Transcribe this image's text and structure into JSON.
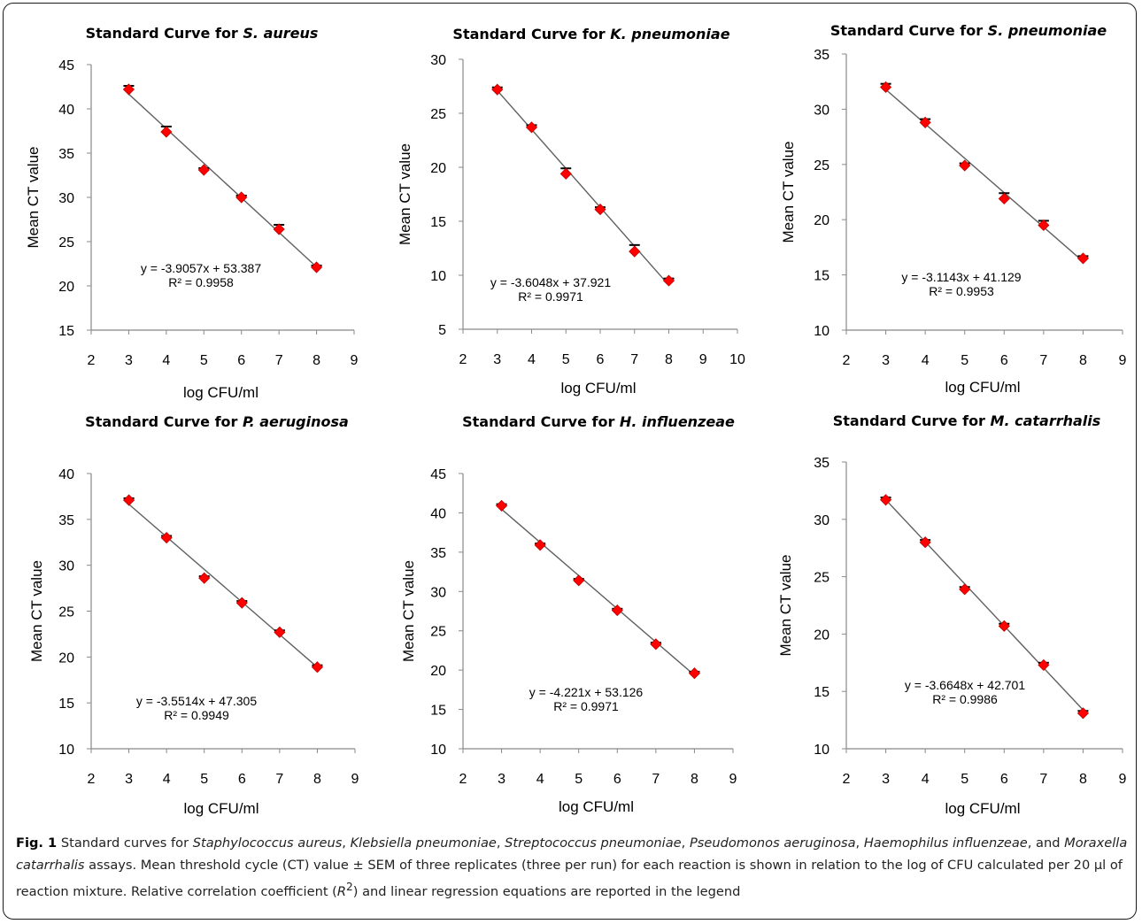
{
  "chart_data": [
    {
      "type": "scatter",
      "title": "Standard Curve for ",
      "title_species": "S. aureus",
      "xlabel": "log CFU/ml",
      "ylabel": "Mean CT value",
      "xlim": [
        2,
        9
      ],
      "ylim": [
        15,
        45
      ],
      "xticks": [
        "2",
        "3",
        "4",
        "5",
        "6",
        "7",
        "8",
        "9"
      ],
      "yticks": [
        "15",
        "20",
        "25",
        "30",
        "35",
        "40",
        "45"
      ],
      "x": [
        3,
        4,
        5,
        6,
        7,
        8
      ],
      "y": [
        42.2,
        37.4,
        33.1,
        30.0,
        26.4,
        22.1
      ],
      "error": [
        0.4,
        0.6,
        0.2,
        0.2,
        0.5,
        0.2
      ],
      "equation": "y = -3.9057x + 53.387",
      "r2": "R² = 0.9958",
      "slope": -3.9057,
      "intercept": 53.387,
      "marker_color": "#ff0000",
      "line_color": "#606060"
    },
    {
      "type": "scatter",
      "title": "Standard Curve for ",
      "title_species": "K. pneumoniae",
      "xlabel": "log CFU/ml",
      "ylabel": "Mean CT value",
      "xlim": [
        2,
        10
      ],
      "ylim": [
        5,
        30
      ],
      "xticks": [
        "2",
        "3",
        "4",
        "5",
        "6",
        "7",
        "8",
        "9",
        "10"
      ],
      "yticks": [
        "5",
        "10",
        "15",
        "20",
        "25",
        "30"
      ],
      "x": [
        3,
        4,
        5,
        6,
        7,
        8
      ],
      "y": [
        27.2,
        23.7,
        19.4,
        16.1,
        12.2,
        9.5
      ],
      "error": [
        0.2,
        0.2,
        0.5,
        0.2,
        0.6,
        0.2
      ],
      "equation": "y = -3.6048x + 37.921",
      "r2": "R² = 0.9971",
      "slope": -3.6048,
      "intercept": 37.921,
      "marker_color": "#ff0000",
      "line_color": "#606060"
    },
    {
      "type": "scatter",
      "title": "Standard Curve for ",
      "title_species": "S. pneumoniae",
      "xlabel": "log CFU/ml",
      "ylabel": "Mean CT value",
      "xlim": [
        2,
        9
      ],
      "ylim": [
        10,
        35
      ],
      "xticks": [
        "2",
        "3",
        "4",
        "5",
        "6",
        "7",
        "8",
        "9"
      ],
      "yticks": [
        "10",
        "15",
        "20",
        "25",
        "30",
        "35"
      ],
      "x": [
        3,
        4,
        5,
        6,
        7,
        8
      ],
      "y": [
        32.0,
        28.8,
        24.9,
        21.9,
        19.5,
        16.5
      ],
      "error": [
        0.3,
        0.3,
        0.2,
        0.5,
        0.4,
        0.2
      ],
      "equation": "y = -3.1143x + 41.129",
      "r2": "R² = 0.9953",
      "slope": -3.1143,
      "intercept": 41.129,
      "marker_color": "#ff0000",
      "line_color": "#606060"
    },
    {
      "type": "scatter",
      "title": "Standard Curve for ",
      "title_species": "P. aeruginosa",
      "xlabel": "log CFU/ml",
      "ylabel": "Mean CT value",
      "xlim": [
        2,
        9
      ],
      "ylim": [
        10,
        40
      ],
      "xticks": [
        "2",
        "3",
        "4",
        "5",
        "6",
        "7",
        "8",
        "9"
      ],
      "yticks": [
        "10",
        "15",
        "20",
        "25",
        "30",
        "35",
        "40"
      ],
      "x": [
        3,
        4,
        5,
        6,
        7,
        8
      ],
      "y": [
        37.1,
        33.0,
        28.6,
        25.9,
        22.7,
        18.9
      ],
      "error": [
        0.2,
        0.2,
        0.2,
        0.2,
        0.2,
        0.2
      ],
      "equation": "y = -3.5514x + 47.305",
      "r2": "R² = 0.9949",
      "slope": -3.5514,
      "intercept": 47.305,
      "marker_color": "#ff0000",
      "line_color": "#606060"
    },
    {
      "type": "scatter",
      "title": "Standard Curve for ",
      "title_species": "H. influenzeae",
      "xlabel": "log CFU/ml",
      "ylabel": "Mean CT value",
      "xlim": [
        2,
        9
      ],
      "ylim": [
        10,
        45
      ],
      "xticks": [
        "2",
        "3",
        "4",
        "5",
        "6",
        "7",
        "8",
        "9"
      ],
      "yticks": [
        "10",
        "15",
        "20",
        "25",
        "30",
        "35",
        "40",
        "45"
      ],
      "x": [
        3,
        4,
        5,
        6,
        7,
        8
      ],
      "y": [
        40.9,
        35.9,
        31.4,
        27.6,
        23.3,
        19.6
      ],
      "error": [
        0.2,
        0.2,
        0.2,
        0.2,
        0.2,
        0.2
      ],
      "equation": "y = -4.221x + 53.126",
      "r2": "R² = 0.9971",
      "slope": -4.221,
      "intercept": 53.126,
      "marker_color": "#ff0000",
      "line_color": "#606060"
    },
    {
      "type": "scatter",
      "title": "Standard Curve for ",
      "title_species": "M. catarrhalis",
      "xlabel": "log CFU/ml",
      "ylabel": "Mean CT value",
      "xlim": [
        2,
        9
      ],
      "ylim": [
        10,
        35
      ],
      "xticks": [
        "2",
        "3",
        "4",
        "5",
        "6",
        "7",
        "8",
        "9"
      ],
      "yticks": [
        "10",
        "15",
        "20",
        "25",
        "30",
        "35"
      ],
      "x": [
        3,
        4,
        5,
        6,
        7,
        8
      ],
      "y": [
        31.7,
        28.0,
        23.9,
        20.7,
        17.3,
        13.1
      ],
      "error": [
        0.2,
        0.2,
        0.2,
        0.2,
        0.2,
        0.2
      ],
      "equation": "y = -3.6648x + 42.701",
      "r2": "R² = 0.9986",
      "slope": -3.6648,
      "intercept": 42.701,
      "marker_color": "#ff0000",
      "line_color": "#606060"
    }
  ],
  "caption": {
    "label": "Fig. 1",
    "t1": " Standard curves for ",
    "sp1": "Staphylococcus aureus",
    "t2": ", ",
    "sp2": "Klebsiella pneumoniae",
    "t3": ", ",
    "sp3": "Streptococcus pneumoniae",
    "t4": ", ",
    "sp4": "Pseudomonos aeruginosa",
    "t5": ", ",
    "sp5": "Haemophilus influenzeae",
    "t6": ", and ",
    "sp6": "Moraxella catarrhalis",
    "t7": " assays. Mean threshold cycle (CT) value ± SEM of three replicates (three per run) for each reaction is shown in relation to the log of CFU calculated per 20 µl of reaction mixture. Relative correlation coefficient (",
    "r_sym": "R",
    "r_exp": "2",
    "t8": ") and linear regression equations are reported in the legend"
  }
}
